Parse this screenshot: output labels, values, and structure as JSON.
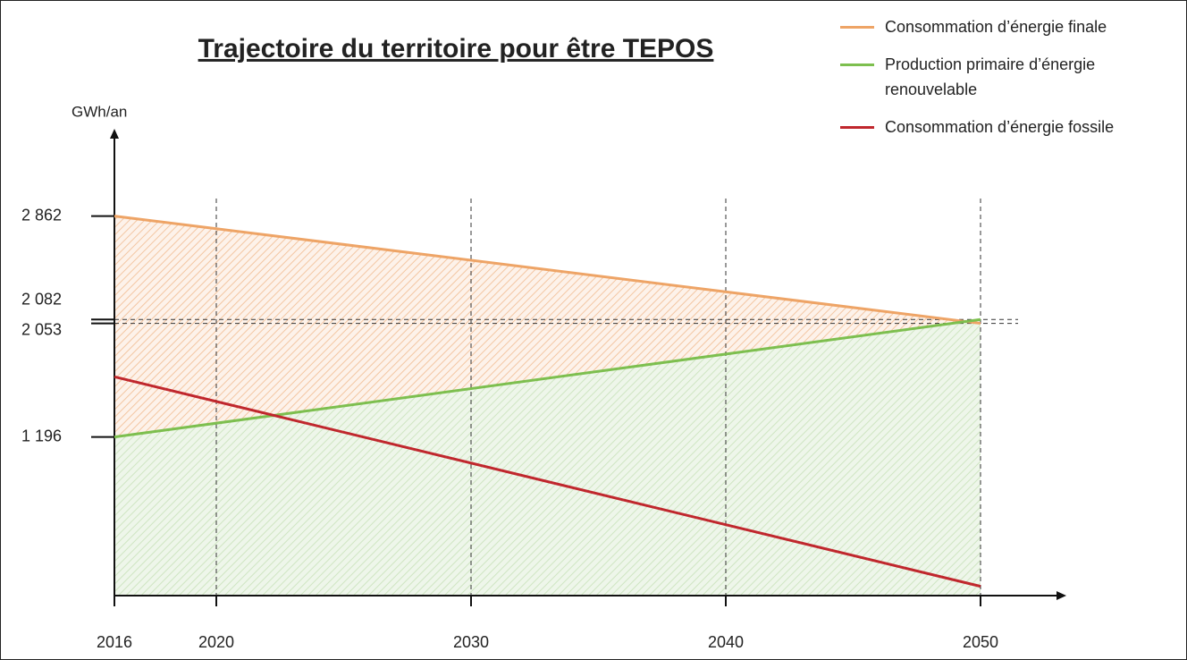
{
  "chart_data": {
    "type": "line",
    "title": "Trajectoire du territoire pour être TEPOS",
    "y_label": "GWh/an",
    "x": [
      2016,
      2050
    ],
    "series": [
      {
        "name": "Consommation d’énergie finale",
        "color": "#eea466",
        "values": [
          2862,
          2053
        ],
        "fill": true
      },
      {
        "name": "Production primaire d’énergie renouvelable",
        "color": "#7dbf4f",
        "values": [
          1196,
          2082
        ],
        "fill": true
      },
      {
        "name": "Consommation d’énergie fossile",
        "color": "#c0272d",
        "values": [
          1650,
          70
        ],
        "fill": false
      }
    ],
    "xlim": [
      2016,
      2050
    ],
    "xticks": [
      2016,
      2020,
      2030,
      2040,
      2050
    ],
    "ylim": [
      0,
      3500
    ],
    "yticks": [
      {
        "value": 1196,
        "label": "1 196"
      },
      {
        "value": 2053,
        "label": "2 053",
        "dashed": true
      },
      {
        "value": 2082,
        "label": "2 082",
        "dashed": true
      },
      {
        "value": 2862,
        "label": "2 862"
      }
    ],
    "grid": true,
    "legend": "top-right"
  }
}
